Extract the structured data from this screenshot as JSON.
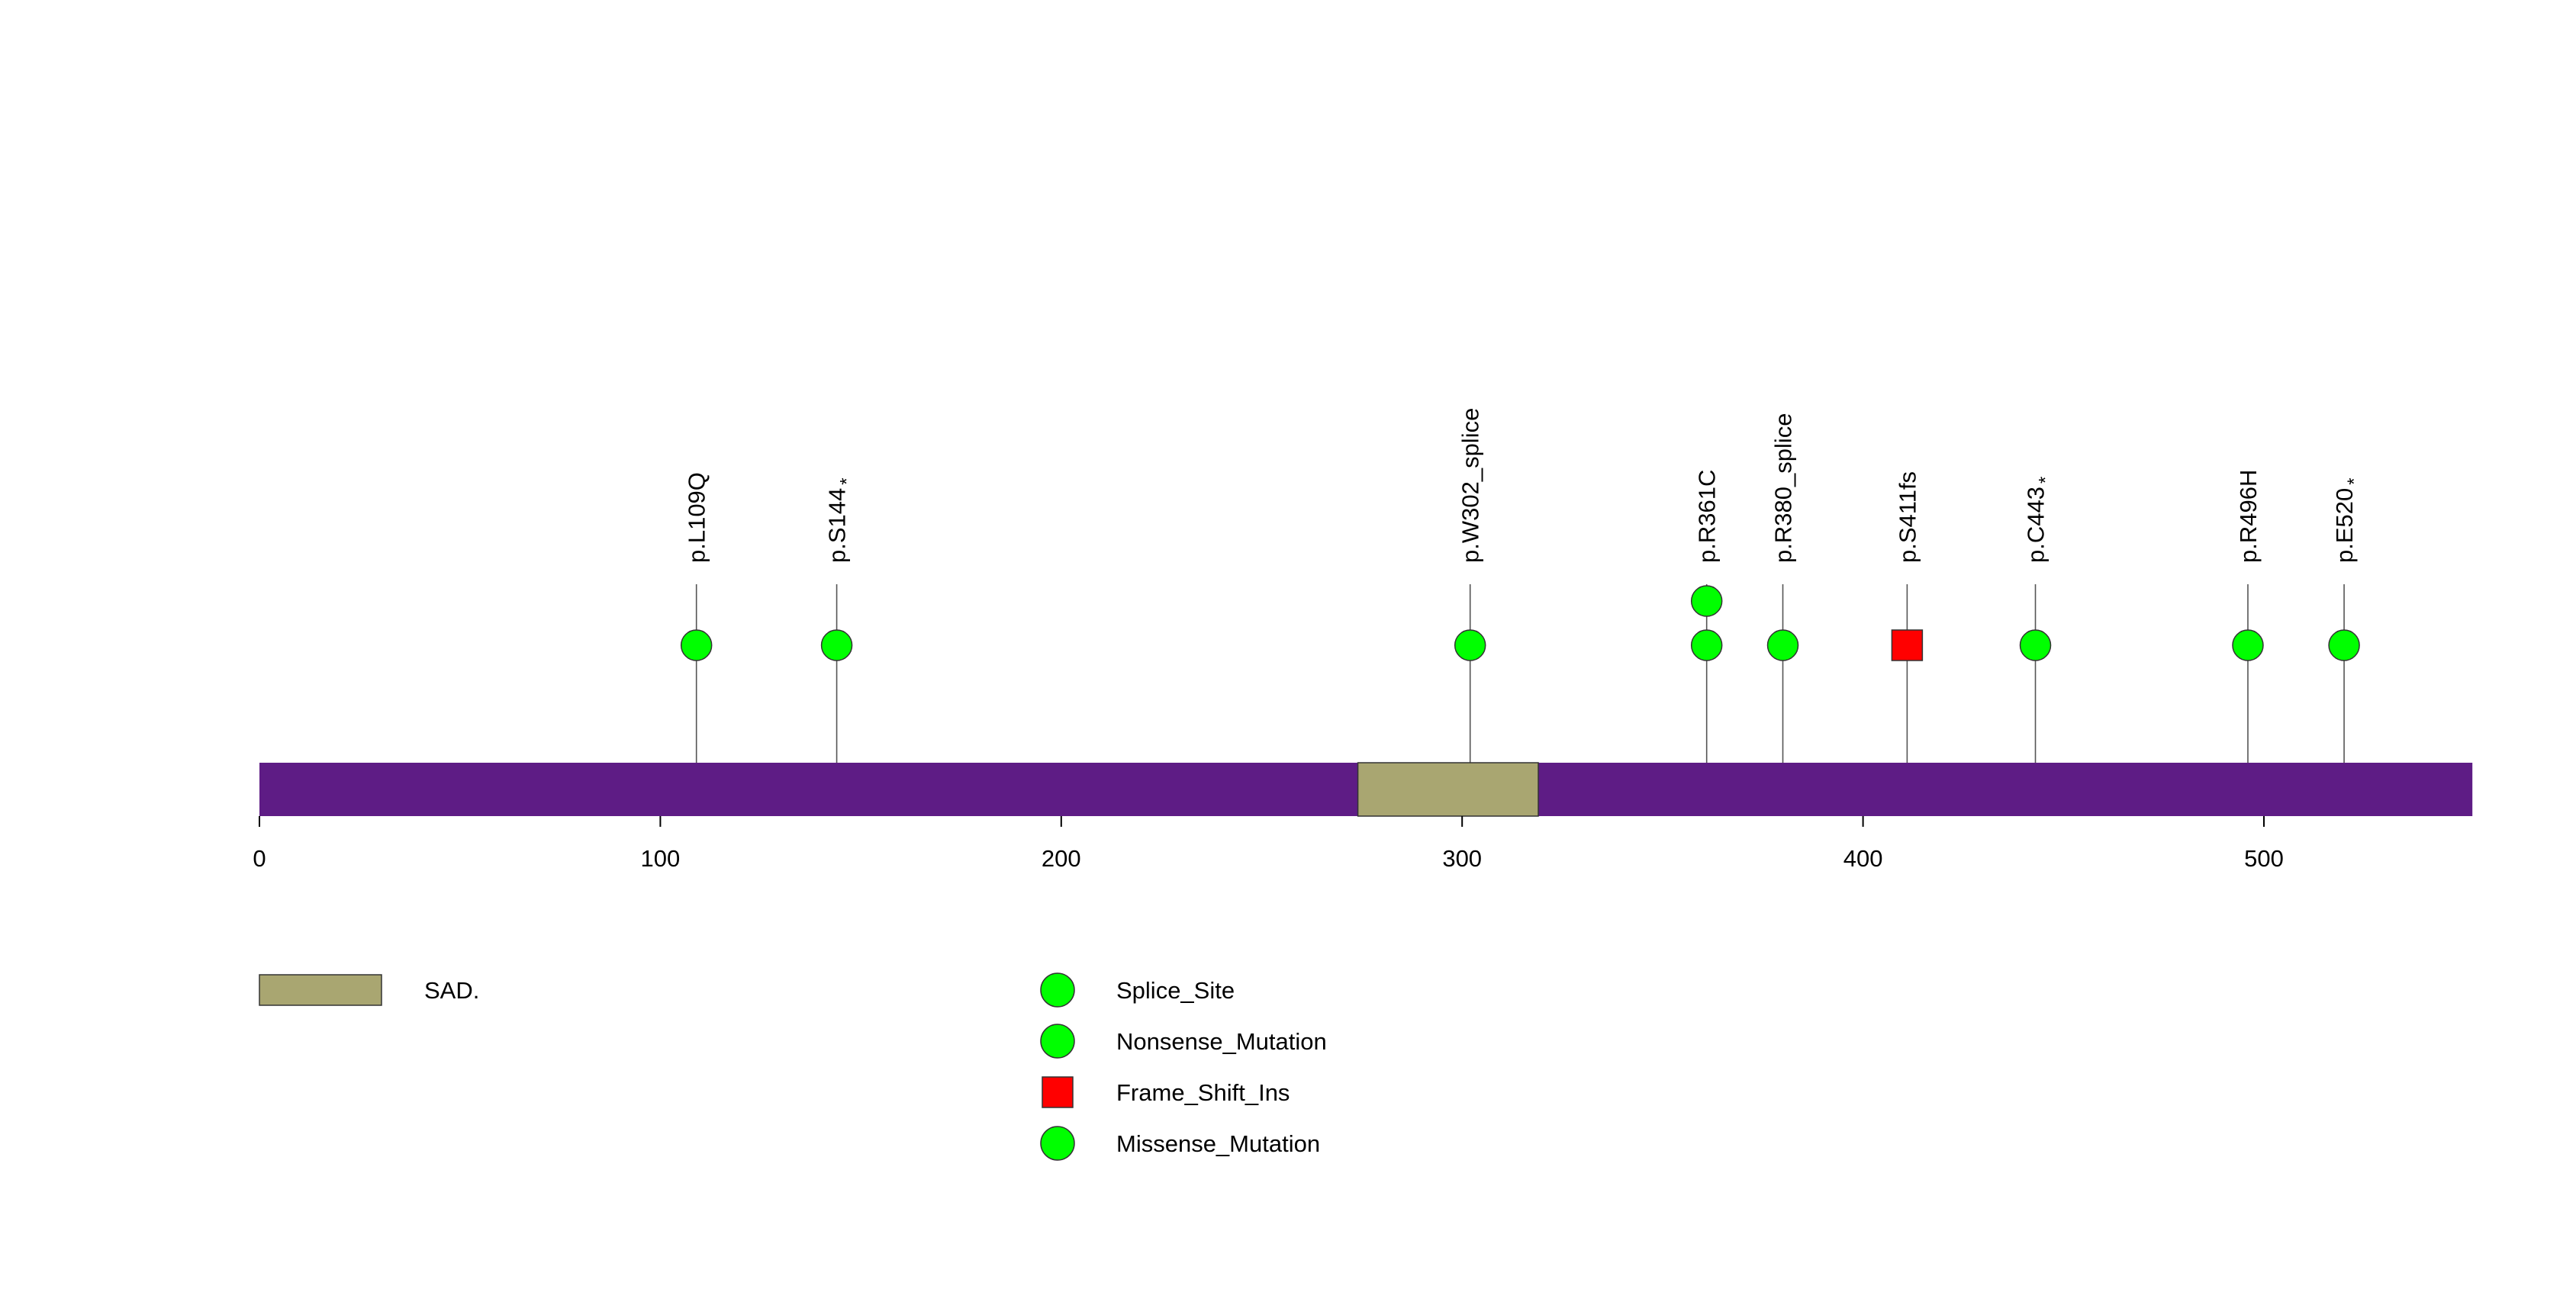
{
  "chart_data": {
    "type": "lollipop",
    "protein_length": 552,
    "axis": {
      "ticks": [
        0,
        100,
        200,
        300,
        400,
        500
      ],
      "tick_labels": [
        "0",
        "100",
        "200",
        "300",
        "400",
        "500"
      ]
    },
    "colors": {
      "protein_bar": "#5E1C85",
      "domain": "#A9A671",
      "green_marker": "#00FF00",
      "red_marker": "#FF0000",
      "stem": "#555555"
    },
    "domains": [
      {
        "name": "SAD.",
        "start": 274,
        "end": 319
      }
    ],
    "mutations": [
      {
        "label": "p.L109Q",
        "position": 109,
        "count": 1,
        "shape": "circle",
        "star": false
      },
      {
        "label": "p.S144",
        "position": 144,
        "count": 1,
        "shape": "circle",
        "star": true
      },
      {
        "label": "p.W302_splice",
        "position": 302,
        "count": 1,
        "shape": "circle",
        "star": false
      },
      {
        "label": "p.R361C",
        "position": 361,
        "count": 2,
        "shape": "circle",
        "star": false
      },
      {
        "label": "p.R380_splice",
        "position": 380,
        "count": 1,
        "shape": "circle",
        "star": false
      },
      {
        "label": "p.S411fs",
        "position": 411,
        "count": 1,
        "shape": "square",
        "star": false
      },
      {
        "label": "p.C443",
        "position": 443,
        "count": 1,
        "shape": "circle",
        "star": true
      },
      {
        "label": "p.R496H",
        "position": 496,
        "count": 1,
        "shape": "circle",
        "star": false
      },
      {
        "label": "p.E520",
        "position": 520,
        "count": 1,
        "shape": "circle",
        "star": true
      }
    ],
    "star_symbol": "*",
    "legend": {
      "domains": [
        {
          "label": "SAD."
        }
      ],
      "mutation_types": [
        {
          "label": "Splice_Site",
          "shape": "circle",
          "color": "#00FF00"
        },
        {
          "label": "Nonsense_Mutation",
          "shape": "circle",
          "color": "#00FF00"
        },
        {
          "label": "Frame_Shift_Ins",
          "shape": "square",
          "color": "#FF0000"
        },
        {
          "label": "Missense_Mutation",
          "shape": "circle",
          "color": "#00FF00"
        }
      ]
    }
  }
}
